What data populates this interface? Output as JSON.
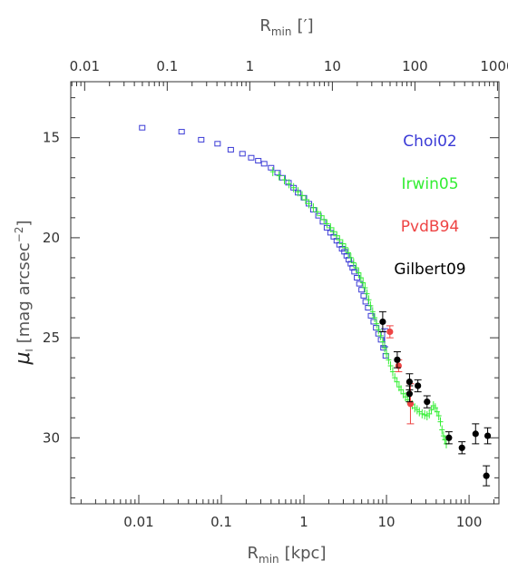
{
  "chart_data": {
    "type": "scatter",
    "xscale": "log",
    "xlim": [
      0.0015,
      230
    ],
    "ylim": [
      33.3,
      12.2
    ],
    "x_label_main": "R",
    "x_label_sub": "min",
    "x_label_unit": "[kpc]",
    "top_label_main": "R",
    "top_label_sub": "min",
    "top_label_unit": "[′]",
    "y_label_main": "μ",
    "y_label_sub": "I",
    "y_label_unit": "[mag arcsec",
    "y_label_sup": "−2",
    "y_label_close": "]",
    "xticks": [
      "0.01",
      "0.1",
      "1",
      "10",
      "100"
    ],
    "xtick_values": [
      0.01,
      0.1,
      1,
      10,
      100
    ],
    "top_ticks": [
      "0.01",
      "0.1",
      "1",
      "10",
      "100",
      "1000"
    ],
    "top_tick_values": [
      0.01,
      0.1,
      1,
      10,
      100,
      1000
    ],
    "kpc_per_arcmin": 0.221,
    "yticks": [
      "15",
      "20",
      "25",
      "30"
    ],
    "ytick_values": [
      15,
      20,
      25,
      30
    ],
    "series": [
      {
        "name": "Choi02",
        "color": "#3b3bd6",
        "marker": "open-square",
        "points": [
          [
            0.011,
            14.5
          ],
          [
            0.033,
            14.7
          ],
          [
            0.057,
            15.1
          ],
          [
            0.09,
            15.3
          ],
          [
            0.13,
            15.6
          ],
          [
            0.18,
            15.8
          ],
          [
            0.23,
            16.0
          ],
          [
            0.28,
            16.15
          ],
          [
            0.33,
            16.3
          ],
          [
            0.4,
            16.5
          ],
          [
            0.48,
            16.75
          ],
          [
            0.55,
            17.0
          ],
          [
            0.65,
            17.25
          ],
          [
            0.75,
            17.5
          ],
          [
            0.85,
            17.75
          ],
          [
            1.0,
            18.0
          ],
          [
            1.15,
            18.3
          ],
          [
            1.3,
            18.6
          ],
          [
            1.5,
            18.9
          ],
          [
            1.7,
            19.2
          ],
          [
            1.9,
            19.5
          ],
          [
            2.1,
            19.75
          ],
          [
            2.3,
            19.95
          ],
          [
            2.5,
            20.15
          ],
          [
            2.7,
            20.35
          ],
          [
            2.9,
            20.55
          ],
          [
            3.1,
            20.7
          ],
          [
            3.3,
            20.9
          ],
          [
            3.5,
            21.1
          ],
          [
            3.7,
            21.3
          ],
          [
            3.9,
            21.5
          ],
          [
            4.1,
            21.7
          ],
          [
            4.4,
            22.0
          ],
          [
            4.7,
            22.3
          ],
          [
            5.0,
            22.6
          ],
          [
            5.3,
            22.9
          ],
          [
            5.6,
            23.2
          ],
          [
            6.0,
            23.5
          ],
          [
            6.5,
            23.9
          ],
          [
            7.0,
            24.2
          ],
          [
            7.5,
            24.5
          ],
          [
            8.0,
            24.8
          ],
          [
            8.6,
            25.1
          ],
          [
            9.2,
            25.5
          ],
          [
            9.8,
            25.9
          ]
        ],
        "error_points": [
          [
            9.5,
            25.0,
            0.45
          ]
        ]
      },
      {
        "name": "Irwin05",
        "color": "#33ee33",
        "marker": "plus",
        "points": [
          [
            0.42,
            16.7
          ],
          [
            0.5,
            16.9
          ],
          [
            0.58,
            17.1
          ],
          [
            0.66,
            17.3
          ],
          [
            0.75,
            17.5
          ],
          [
            0.85,
            17.7
          ],
          [
            0.95,
            17.9
          ],
          [
            1.05,
            18.1
          ],
          [
            1.15,
            18.3
          ],
          [
            1.3,
            18.5
          ],
          [
            1.45,
            18.7
          ],
          [
            1.6,
            18.9
          ],
          [
            1.75,
            19.1
          ],
          [
            1.9,
            19.3
          ],
          [
            2.1,
            19.5
          ],
          [
            2.3,
            19.7
          ],
          [
            2.5,
            19.9
          ],
          [
            2.7,
            20.1
          ],
          [
            2.95,
            20.3
          ],
          [
            3.2,
            20.5
          ],
          [
            3.45,
            20.75
          ],
          [
            3.7,
            21.0
          ],
          [
            4.0,
            21.25
          ],
          [
            4.3,
            21.5
          ],
          [
            4.6,
            21.75
          ],
          [
            4.9,
            22.0
          ],
          [
            5.2,
            22.25
          ],
          [
            5.5,
            22.5
          ],
          [
            5.8,
            22.8
          ],
          [
            6.1,
            23.1
          ],
          [
            6.4,
            23.4
          ],
          [
            6.8,
            23.7
          ],
          [
            7.2,
            24.0
          ],
          [
            7.6,
            24.3
          ],
          [
            8.0,
            24.6
          ],
          [
            8.5,
            24.9
          ],
          [
            9.0,
            25.2
          ],
          [
            9.5,
            25.5
          ],
          [
            10.0,
            25.8
          ],
          [
            10.6,
            26.1
          ],
          [
            11.2,
            26.4
          ],
          [
            11.9,
            26.7
          ],
          [
            12.6,
            27.0
          ],
          [
            13.4,
            27.2
          ],
          [
            14.2,
            27.45
          ],
          [
            15.0,
            27.6
          ],
          [
            16.0,
            27.8
          ],
          [
            17.0,
            27.95
          ],
          [
            18.0,
            28.1
          ],
          [
            19.0,
            28.2
          ],
          [
            20.5,
            28.35
          ],
          [
            22.0,
            28.5
          ],
          [
            23.5,
            28.6
          ],
          [
            25.0,
            28.7
          ],
          [
            27.0,
            28.8
          ],
          [
            29.0,
            28.85
          ],
          [
            31.0,
            28.9
          ],
          [
            33.0,
            28.8
          ],
          [
            35.0,
            28.6
          ],
          [
            37.0,
            28.4
          ],
          [
            39.0,
            28.5
          ],
          [
            41.0,
            28.7
          ],
          [
            43.0,
            28.9
          ],
          [
            45.0,
            29.2
          ],
          [
            47.0,
            29.6
          ],
          [
            49.0,
            29.9
          ],
          [
            51.0,
            30.1
          ],
          [
            53.0,
            30.3
          ]
        ]
      },
      {
        "name": "PvdB94",
        "color": "#ee4444",
        "marker": "filled-circle",
        "points": [
          [
            11.0,
            24.7
          ],
          [
            14.0,
            26.4
          ],
          [
            19.5,
            28.3
          ]
        ],
        "errors": [
          0.3,
          0.3,
          1.0
        ]
      },
      {
        "name": "Gilbert09",
        "color": "#000000",
        "marker": "filled-circle",
        "points": [
          [
            9.0,
            24.2
          ],
          [
            13.5,
            26.1
          ],
          [
            19.0,
            27.2
          ],
          [
            19.0,
            27.8
          ],
          [
            24.0,
            27.4
          ],
          [
            31.0,
            28.2
          ],
          [
            57.0,
            30.0
          ],
          [
            82.0,
            30.5
          ],
          [
            120.0,
            29.8
          ],
          [
            168.0,
            29.9
          ],
          [
            162.0,
            31.9
          ]
        ],
        "errors": [
          0.5,
          0.4,
          0.4,
          0.4,
          0.3,
          0.3,
          0.3,
          0.3,
          0.5,
          0.4,
          0.5
        ]
      }
    ]
  }
}
